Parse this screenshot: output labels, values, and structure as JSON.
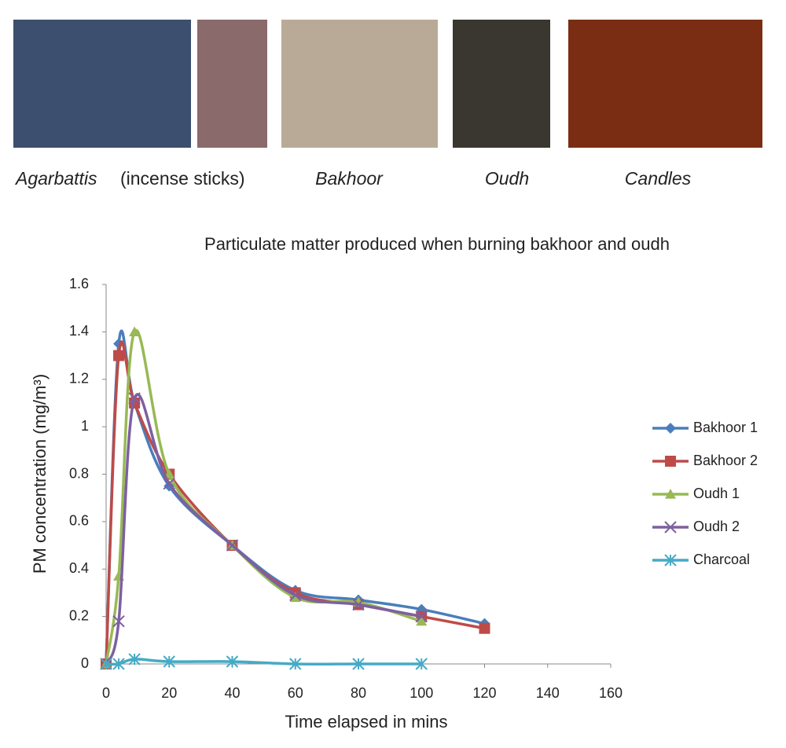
{
  "captions": [
    "Agarbattis",
    "(incense sticks)",
    "Bakhoor",
    "Oudh",
    "Candles"
  ],
  "chart_data": {
    "type": "line",
    "title": "Particulate matter produced when burning bakhoor and oudh",
    "x_label": "Time elapsed in mins",
    "y_label": "PM concentration (mg/m³)",
    "x": [
      0,
      4,
      9,
      20,
      40,
      60,
      80,
      100,
      120
    ],
    "xlim": [
      0,
      160
    ],
    "xticks": [
      0,
      20,
      40,
      60,
      80,
      100,
      120,
      140,
      160
    ],
    "ylim": [
      0,
      1.6
    ],
    "yticks": [
      0,
      0.2,
      0.4,
      0.6,
      0.8,
      1,
      1.2,
      1.4,
      1.6
    ],
    "grid": false,
    "legend": "right",
    "smooth": true,
    "series": [
      {
        "name": "Bakhoor 1",
        "color": "#4a7ebb",
        "marker": "diamond",
        "values": [
          0,
          1.35,
          1.1,
          0.75,
          0.5,
          0.31,
          0.27,
          0.23,
          0.17
        ]
      },
      {
        "name": "Bakhoor 2",
        "color": "#be4b48",
        "marker": "square",
        "values": [
          0,
          1.3,
          1.1,
          0.8,
          0.5,
          0.3,
          0.25,
          0.2,
          0.15
        ]
      },
      {
        "name": "Oudh 1",
        "color": "#98b954",
        "marker": "triangle",
        "values": [
          0,
          0.37,
          1.4,
          0.8,
          0.5,
          0.28,
          0.26,
          0.18,
          null
        ]
      },
      {
        "name": "Oudh 2",
        "color": "#7d60a0",
        "marker": "x",
        "values": [
          0,
          0.18,
          1.12,
          0.76,
          0.5,
          0.29,
          0.25,
          0.2,
          null
        ]
      },
      {
        "name": "Charcoal",
        "color": "#46aac5",
        "marker": "star",
        "values": [
          0,
          0,
          0.02,
          0.01,
          0.01,
          0,
          0,
          0,
          null
        ]
      }
    ]
  }
}
